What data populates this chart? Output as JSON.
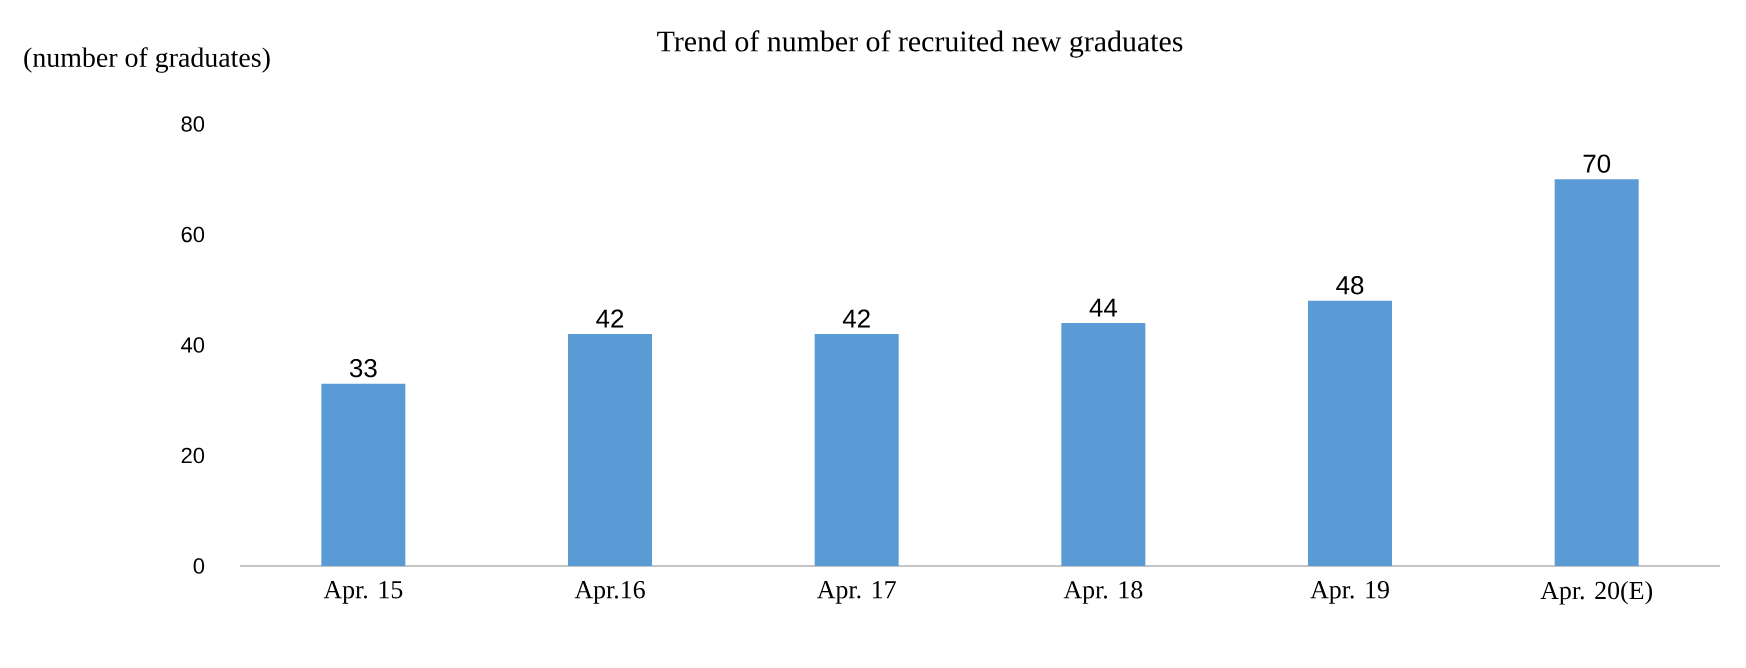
{
  "chart_data": {
    "type": "bar",
    "title": "Trend of number of recruited new graduates",
    "ylabel": "(number of graduates)",
    "categories": [
      "Apr. 15",
      "Apr.16",
      "Apr. 17",
      "Apr. 18",
      "Apr. 19",
      "Apr. 20(E)"
    ],
    "values": [
      33,
      42,
      42,
      44,
      48,
      70
    ],
    "color": "#5b9bd5",
    "ylim": [
      0,
      80
    ],
    "yticks": [
      0,
      20,
      40,
      60,
      80
    ],
    "data_labels": true
  }
}
